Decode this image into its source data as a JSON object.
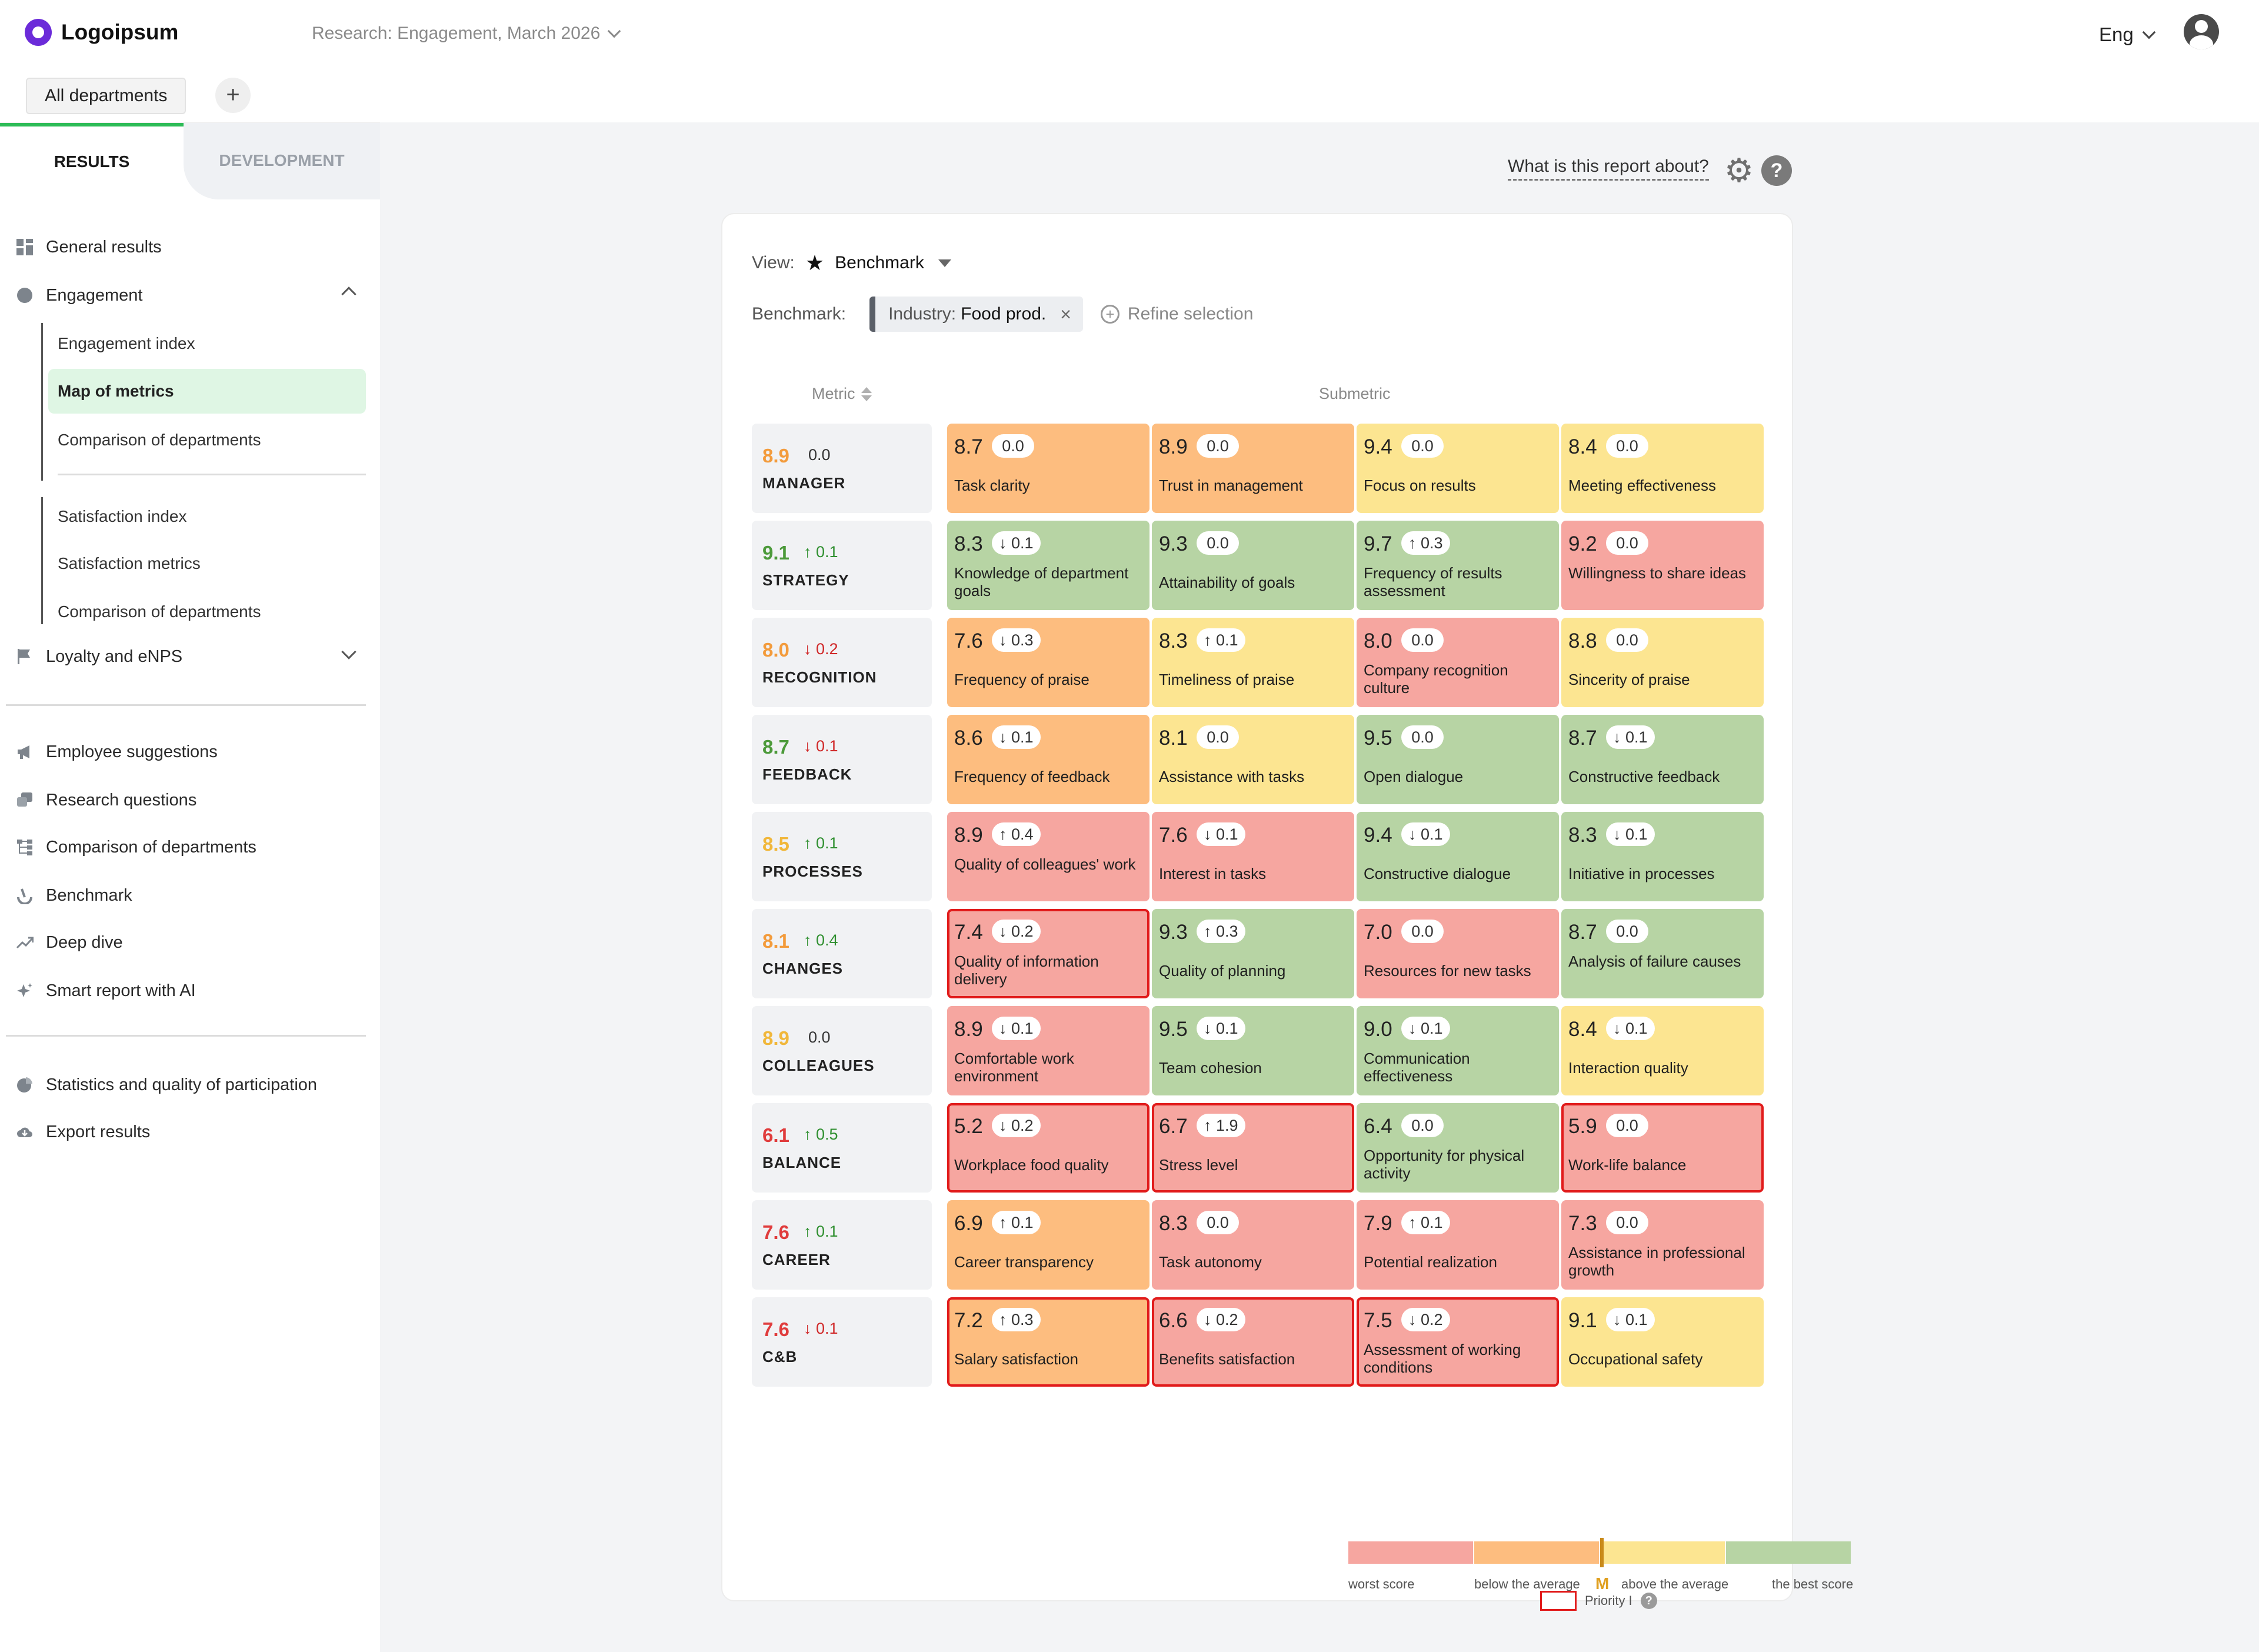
{
  "header": {
    "logo_text": "Logoipsum",
    "research_title": "Research: Engagement, March 2026",
    "language": "Eng",
    "department_tab": "All departments",
    "add_label": "+"
  },
  "tabs": {
    "results": "RESULTS",
    "development": "DEVELOPMENT"
  },
  "sidebar": {
    "general_results": "General results",
    "engagement": "Engagement",
    "engagement_items": [
      "Engagement index",
      "Map of metrics",
      "Comparison of departments",
      "Satisfaction index",
      "Satisfaction metrics",
      "Comparison of departments"
    ],
    "loyalty": "Loyalty and eNPS",
    "employee_suggestions": "Employee suggestions",
    "research_questions": "Research questions",
    "comparison": "Comparison of departments",
    "benchmark": "Benchmark",
    "deep_dive": "Deep dive",
    "smart_report": "Smart report with AI",
    "statistics": "Statistics and quality of participation",
    "export": "Export results"
  },
  "main": {
    "about_link": "What is this report about?",
    "help_icon_label": "?",
    "view_label": "View:",
    "view_value": "Benchmark",
    "benchmark_label": "Benchmark:",
    "chip_key": "Industry:",
    "chip_value": "Food prod.",
    "chip_close": "×",
    "refine": "Refine selection",
    "col_metric": "Metric",
    "col_submetric": "Submetric"
  },
  "colors": {
    "red": "#f6a6a0",
    "orange": "#fdbd7f",
    "yellow": "#fce591",
    "green": "#b7d4a4",
    "priority_border": "#e11b1b",
    "active_tab": "#2dbb57"
  },
  "metrics": [
    {
      "name": "MANAGER",
      "score": "8.9",
      "score_color": "orange",
      "delta": "0.0",
      "dir": "none",
      "subs": [
        {
          "score": "8.7",
          "delta": "0.0",
          "dir": "none",
          "name": "Task clarity",
          "color": "orange",
          "priority": false
        },
        {
          "score": "8.9",
          "delta": "0.0",
          "dir": "none",
          "name": "Trust in management",
          "color": "orange",
          "priority": false
        },
        {
          "score": "9.4",
          "delta": "0.0",
          "dir": "none",
          "name": "Focus on results",
          "color": "yellow",
          "priority": false
        },
        {
          "score": "8.4",
          "delta": "0.0",
          "dir": "none",
          "name": "Meeting effectiveness",
          "color": "yellow",
          "priority": false
        }
      ]
    },
    {
      "name": "STRATEGY",
      "score": "9.1",
      "score_color": "green",
      "delta": "0.1",
      "dir": "up",
      "subs": [
        {
          "score": "8.3",
          "delta": "0.1",
          "dir": "down",
          "name": "Knowledge of department goals",
          "color": "green",
          "priority": false
        },
        {
          "score": "9.3",
          "delta": "0.0",
          "dir": "none",
          "name": "Attainability of goals",
          "color": "green",
          "priority": false
        },
        {
          "score": "9.7",
          "delta": "0.3",
          "dir": "up",
          "name": "Frequency of results assessment",
          "color": "green",
          "priority": false
        },
        {
          "score": "9.2",
          "delta": "0.0",
          "dir": "none",
          "name": "Willingness to share ideas",
          "color": "red",
          "priority": false
        }
      ]
    },
    {
      "name": "RECOGNITION",
      "score": "8.0",
      "score_color": "orange",
      "delta": "0.2",
      "dir": "down",
      "subs": [
        {
          "score": "7.6",
          "delta": "0.3",
          "dir": "down",
          "name": "Frequency of praise",
          "color": "orange",
          "priority": false
        },
        {
          "score": "8.3",
          "delta": "0.1",
          "dir": "up",
          "name": "Timeliness of praise",
          "color": "yellow",
          "priority": false
        },
        {
          "score": "8.0",
          "delta": "0.0",
          "dir": "none",
          "name": "Company recognition culture",
          "color": "red",
          "priority": false
        },
        {
          "score": "8.8",
          "delta": "0.0",
          "dir": "none",
          "name": "Sincerity of praise",
          "color": "yellow",
          "priority": false
        }
      ]
    },
    {
      "name": "FEEDBACK",
      "score": "8.7",
      "score_color": "green",
      "delta": "0.1",
      "dir": "down",
      "subs": [
        {
          "score": "8.6",
          "delta": "0.1",
          "dir": "down",
          "name": "Frequency of feedback",
          "color": "orange",
          "priority": false
        },
        {
          "score": "8.1",
          "delta": "0.0",
          "dir": "none",
          "name": "Assistance with tasks",
          "color": "yellow",
          "priority": false
        },
        {
          "score": "9.5",
          "delta": "0.0",
          "dir": "none",
          "name": "Open dialogue",
          "color": "green",
          "priority": false
        },
        {
          "score": "8.7",
          "delta": "0.1",
          "dir": "down",
          "name": "Constructive feedback",
          "color": "green",
          "priority": false
        }
      ]
    },
    {
      "name": "PROCESSES",
      "score": "8.5",
      "score_color": "yellow",
      "delta": "0.1",
      "dir": "up",
      "subs": [
        {
          "score": "8.9",
          "delta": "0.4",
          "dir": "up",
          "name": "Quality of colleagues' work",
          "color": "red",
          "priority": false
        },
        {
          "score": "7.6",
          "delta": "0.1",
          "dir": "down",
          "name": "Interest in tasks",
          "color": "red",
          "priority": false
        },
        {
          "score": "9.4",
          "delta": "0.1",
          "dir": "down",
          "name": "Constructive dialogue",
          "color": "green",
          "priority": false
        },
        {
          "score": "8.3",
          "delta": "0.1",
          "dir": "down",
          "name": "Initiative in processes",
          "color": "green",
          "priority": false
        }
      ]
    },
    {
      "name": "CHANGES",
      "score": "8.1",
      "score_color": "orange",
      "delta": "0.4",
      "dir": "up",
      "subs": [
        {
          "score": "7.4",
          "delta": "0.2",
          "dir": "down",
          "name": "Quality of information delivery",
          "color": "red",
          "priority": true
        },
        {
          "score": "9.3",
          "delta": "0.3",
          "dir": "up",
          "name": "Quality of planning",
          "color": "green",
          "priority": false
        },
        {
          "score": "7.0",
          "delta": "0.0",
          "dir": "none",
          "name": "Resources for new tasks",
          "color": "red",
          "priority": false
        },
        {
          "score": "8.7",
          "delta": "0.0",
          "dir": "none",
          "name": "Analysis of failure causes",
          "color": "green",
          "priority": false
        }
      ]
    },
    {
      "name": "COLLEAGUES",
      "score": "8.9",
      "score_color": "yellow",
      "delta": "0.0",
      "dir": "none",
      "subs": [
        {
          "score": "8.9",
          "delta": "0.1",
          "dir": "down",
          "name": "Comfortable work environment",
          "color": "red",
          "priority": false
        },
        {
          "score": "9.5",
          "delta": "0.1",
          "dir": "down",
          "name": "Team cohesion",
          "color": "green",
          "priority": false
        },
        {
          "score": "9.0",
          "delta": "0.1",
          "dir": "down",
          "name": "Communication effectiveness",
          "color": "green",
          "priority": false
        },
        {
          "score": "8.4",
          "delta": "0.1",
          "dir": "down",
          "name": "Interaction quality",
          "color": "yellow",
          "priority": false
        }
      ]
    },
    {
      "name": "BALANCE",
      "score": "6.1",
      "score_color": "red",
      "delta": "0.5",
      "dir": "up",
      "subs": [
        {
          "score": "5.2",
          "delta": "0.2",
          "dir": "down",
          "name": "Workplace food quality",
          "color": "red",
          "priority": true
        },
        {
          "score": "6.7",
          "delta": "1.9",
          "dir": "up",
          "name": "Stress level",
          "color": "red",
          "priority": true
        },
        {
          "score": "6.4",
          "delta": "0.0",
          "dir": "none",
          "name": "Opportunity for physical activity",
          "color": "green",
          "priority": false
        },
        {
          "score": "5.9",
          "delta": "0.0",
          "dir": "none",
          "name": "Work-life balance",
          "color": "red",
          "priority": true
        }
      ]
    },
    {
      "name": "CAREER",
      "score": "7.6",
      "score_color": "red",
      "delta": "0.1",
      "dir": "up",
      "subs": [
        {
          "score": "6.9",
          "delta": "0.1",
          "dir": "up",
          "name": "Career transparency",
          "color": "orange",
          "priority": false
        },
        {
          "score": "8.3",
          "delta": "0.0",
          "dir": "none",
          "name": "Task autonomy",
          "color": "red",
          "priority": false
        },
        {
          "score": "7.9",
          "delta": "0.1",
          "dir": "up",
          "name": "Potential realization",
          "color": "red",
          "priority": false
        },
        {
          "score": "7.3",
          "delta": "0.0",
          "dir": "none",
          "name": "Assistance in professional growth",
          "color": "red",
          "priority": false
        }
      ]
    },
    {
      "name": "C&B",
      "score": "7.6",
      "score_color": "red",
      "delta": "0.1",
      "dir": "down",
      "subs": [
        {
          "score": "7.2",
          "delta": "0.3",
          "dir": "up",
          "name": "Salary satisfaction",
          "color": "orange",
          "priority": true
        },
        {
          "score": "6.6",
          "delta": "0.2",
          "dir": "down",
          "name": "Benefits satisfaction",
          "color": "red",
          "priority": true
        },
        {
          "score": "7.5",
          "delta": "0.2",
          "dir": "down",
          "name": "Assessment of working conditions",
          "color": "red",
          "priority": true
        },
        {
          "score": "9.1",
          "delta": "0.1",
          "dir": "down",
          "name": "Occupational safety",
          "color": "yellow",
          "priority": false
        }
      ]
    }
  ],
  "legend": {
    "labels": [
      "worst score",
      "below the average",
      "above the average",
      "the best score"
    ],
    "marker": "M",
    "priority": "Priority I",
    "priority_help": "?"
  }
}
